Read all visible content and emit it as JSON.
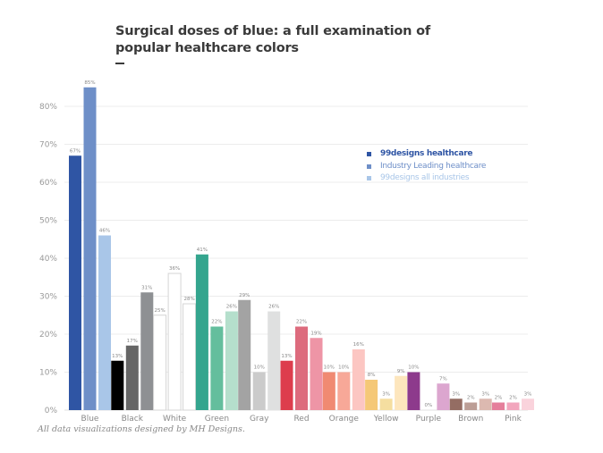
{
  "chart_data": {
    "type": "bar",
    "title": "Surgical doses of blue: a full examination of popular healthcare colors",
    "xlabel": "",
    "ylabel": "",
    "ylim": [
      0,
      80
    ],
    "yticks": [
      0,
      10,
      20,
      30,
      40,
      50,
      60,
      70,
      80
    ],
    "ytick_labels": [
      "0%",
      "10%",
      "20%",
      "30%",
      "40%",
      "50%",
      "60%",
      "70%",
      "80%"
    ],
    "grid": true,
    "legend_position": "top-right",
    "categories": [
      "Blue",
      "Black",
      "White",
      "Green",
      "Gray",
      "Red",
      "Orange",
      "Yellow",
      "Purple",
      "Brown",
      "Pink"
    ],
    "series": [
      {
        "name": "99designs healthcare",
        "legend_color": "#2f55a4",
        "values": [
          67,
          13,
          25,
          41,
          29,
          13,
          10,
          8,
          10,
          3,
          2
        ]
      },
      {
        "name": "Industry Leading healthcare",
        "legend_color": "#6e8fc8",
        "values": [
          85,
          17,
          36,
          22,
          10,
          22,
          10,
          3,
          0,
          2,
          2
        ]
      },
      {
        "name": "99designs all industries",
        "legend_color": "#a9c6e8",
        "values": [
          46,
          31,
          28,
          26,
          26,
          19,
          16,
          9,
          7,
          3,
          3
        ]
      }
    ],
    "bar_colors": [
      [
        "#2f55a4",
        "#6e8fc8",
        "#a9c6e8"
      ],
      [
        "#000000",
        "#666666",
        "#8e9093"
      ],
      [
        "#ffffff",
        "#ffffff",
        "#ffffff"
      ],
      [
        "#34a58e",
        "#64be9d",
        "#b5dfcc"
      ],
      [
        "#a3a3a3",
        "#cbcbcb",
        "#dfe0e0"
      ],
      [
        "#dd3d4d",
        "#dd6b7d",
        "#ee95a6"
      ],
      [
        "#f08a72",
        "#f7a898",
        "#fcc6c2"
      ],
      [
        "#f5c877",
        "#f5dea0",
        "#fde6bd"
      ],
      [
        "#8d3a8c",
        "#ffffff",
        "#dca6cf"
      ],
      [
        "#946d63",
        "#bc9e96",
        "#dcb9b0"
      ],
      [
        "#e57f9b",
        "#f2a6bd",
        "#fad3dc"
      ]
    ],
    "value_label_suffix": "%"
  },
  "footer": "All data visualizations designed by MH Designs."
}
